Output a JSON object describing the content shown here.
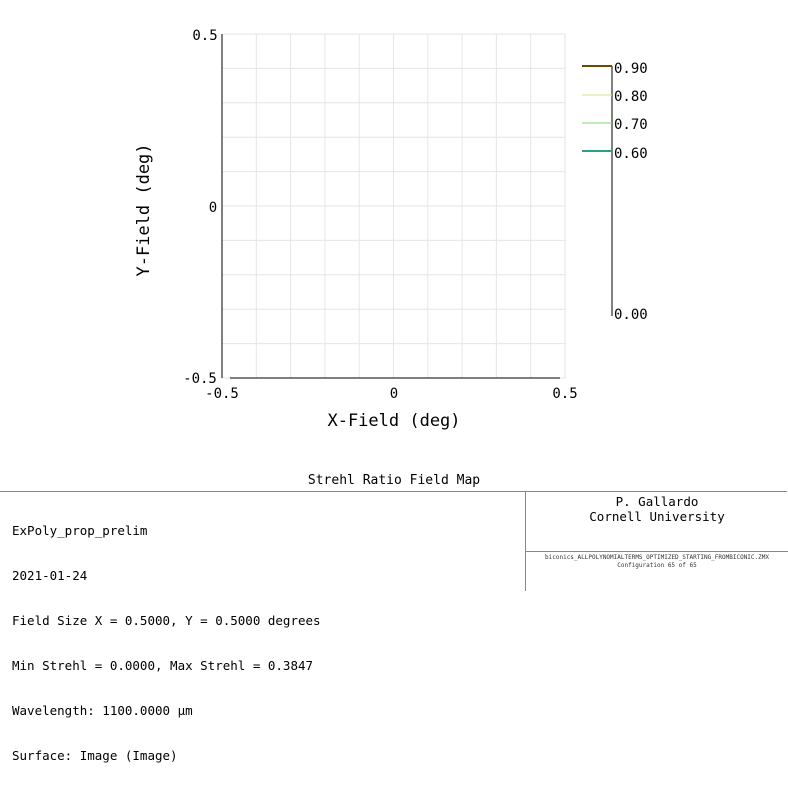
{
  "chart_data": {
    "type": "heatmap",
    "title": "Strehl Ratio Field Map",
    "xlabel": "X-Field (deg)",
    "ylabel": "Y-Field (deg)",
    "xlim": [
      -0.5,
      0.5
    ],
    "ylim": [
      -0.5,
      0.5
    ],
    "x_ticks": [
      "-0.5",
      "0",
      "0.5"
    ],
    "y_ticks": [
      "0.5",
      "0",
      "-0.5"
    ],
    "grid": true,
    "contours": [
      {
        "level": 0.9,
        "label": "0.90",
        "color": "#6b4a00"
      },
      {
        "level": 0.8,
        "label": "0.80",
        "color": "#d9e08a"
      },
      {
        "level": 0.7,
        "label": "0.70",
        "color": "#7ed66e"
      },
      {
        "level": 0.6,
        "label": "0.60",
        "color": "#2a9f88"
      }
    ],
    "scale_bottom": {
      "level": 0.0,
      "label": "0.00"
    },
    "legend_placement": "right"
  },
  "footer": {
    "lines": [
      "ExPoly_prop_prelim",
      "2021-01-24",
      "Field Size X = 0.5000, Y = 0.5000 degrees",
      "Min Strehl = 0.0000, Max Strehl = 0.3847",
      "Wavelength: 1100.0000 µm",
      "Surface: Image (Image)"
    ],
    "author": "P. Gallardo",
    "affiliation": "Cornell University",
    "file": "biconics_ALLPOLYNOMIALTERMS_OPTIMIZED_STARTING_FROMBICONIC.ZMX",
    "config": "Configuration 65 of 65"
  }
}
